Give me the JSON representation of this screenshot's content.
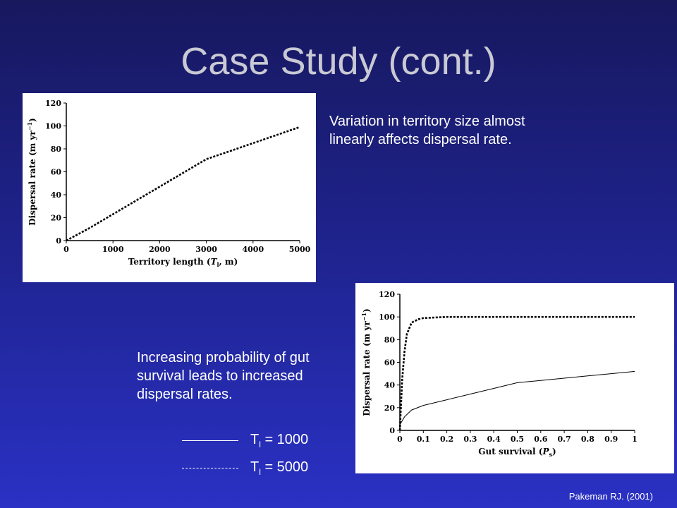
{
  "slide": {
    "title": "Case Study (cont.)",
    "caption_top": "Variation in territory size almost linearly affects dispersal rate.",
    "caption_bottom": "Increasing probability of gut survival leads to increased dispersal rates.",
    "citation": "Pakeman RJ. (2001)"
  },
  "legend": [
    {
      "prefix": "T",
      "sub": "l",
      "suffix": " = 1000",
      "style": "solid",
      "color": "#ffffff"
    },
    {
      "prefix": "T",
      "sub": "l",
      "suffix": " = 5000",
      "style": "dashed",
      "color": "#ffffff"
    }
  ],
  "colors": {
    "line": "#000000",
    "plot_bg": "#ffffff"
  },
  "chart_data": [
    {
      "type": "line",
      "xlabel_main": "Territory length (",
      "xlabel_sym": "T",
      "xlabel_sub": "l",
      "xlabel_end": ", m)",
      "ylabel": "Dispersal rate (m yr",
      "ylabel_sup": "−1",
      "ylabel_end": ")",
      "xlim": [
        0,
        5000
      ],
      "ylim": [
        0,
        120
      ],
      "xticks": [
        0,
        1000,
        2000,
        3000,
        4000,
        5000
      ],
      "yticks": [
        0,
        20,
        40,
        60,
        80,
        100,
        120
      ],
      "series": [
        {
          "style": "dashed",
          "x": [
            0,
            500,
            1000,
            1500,
            2000,
            2500,
            3000,
            3500,
            4000,
            4500,
            5000
          ],
          "y": [
            0,
            11,
            23,
            35,
            47,
            59,
            71,
            78,
            85,
            92,
            99
          ]
        }
      ]
    },
    {
      "type": "line",
      "xlabel_main": "Gut survival (",
      "xlabel_sym": "P",
      "xlabel_sub": "s",
      "xlabel_end": ")",
      "ylabel": "Dispersal rate (m yr",
      "ylabel_sup": "−1",
      "ylabel_end": ")",
      "xlim": [
        0,
        1
      ],
      "ylim": [
        0,
        120
      ],
      "xticks": [
        0,
        0.1,
        0.2,
        0.3,
        0.4,
        0.5,
        0.6,
        0.7,
        0.8,
        0.9,
        1
      ],
      "yticks": [
        0,
        20,
        40,
        60,
        80,
        100,
        120
      ],
      "series": [
        {
          "style": "dashed",
          "x": [
            0,
            0.01,
            0.02,
            0.03,
            0.05,
            0.08,
            0.1,
            0.2,
            0.5,
            1
          ],
          "y": [
            0,
            45,
            70,
            85,
            95,
            98,
            99,
            100,
            100,
            100
          ]
        },
        {
          "style": "solid",
          "x": [
            0,
            0.02,
            0.05,
            0.1,
            0.2,
            0.3,
            0.4,
            0.5,
            0.6,
            0.7,
            0.8,
            0.9,
            1
          ],
          "y": [
            5,
            12,
            18,
            22,
            27,
            32,
            37,
            42,
            44,
            46,
            48,
            50,
            52
          ]
        }
      ]
    }
  ]
}
